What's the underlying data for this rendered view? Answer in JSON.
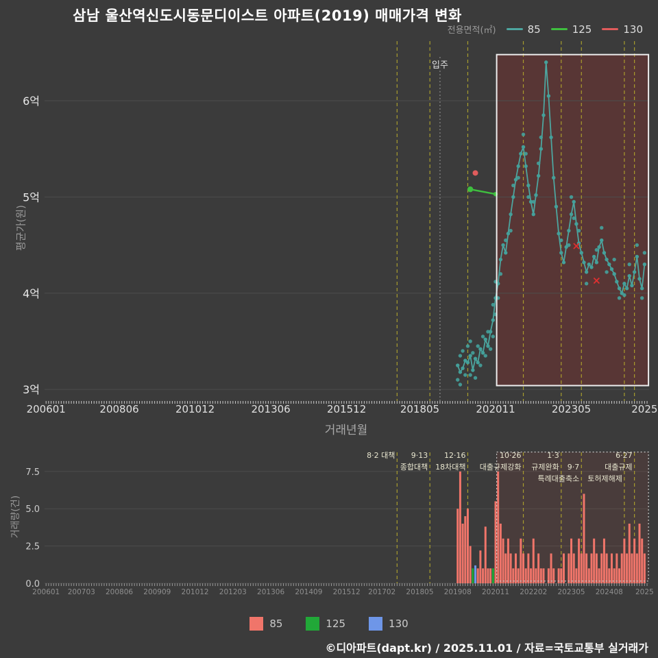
{
  "page": {
    "title": "삼남 울산역신도시동문디이스트 아파트(2019) 매매가격 변화",
    "footer": "©디아파트(dapt.kr) / 2025.11.01 / 자료=국토교통부 실거래가"
  },
  "legend_top": {
    "label": "전용면적(㎡)",
    "items": [
      {
        "name": "85",
        "color": "#4da6a0"
      },
      {
        "name": "125",
        "color": "#3fbf3f"
      },
      {
        "name": "130",
        "color": "#e05c5c"
      }
    ]
  },
  "legend_bottom": {
    "items": [
      {
        "name": "85",
        "color": "#f0756a"
      },
      {
        "name": "125",
        "color": "#21a838"
      },
      {
        "name": "130",
        "color": "#6e96e8"
      }
    ]
  },
  "colors": {
    "background": "#3b3b3b",
    "grid": "#4d4d4d",
    "policy_line": "#b3a82c",
    "axis_text": "#e0e0e0",
    "axis_text_dim": "#8f8f8f",
    "annotation_text": "#e8e6cf",
    "highlight_border": "#eeeeee",
    "highlight_fill": "rgba(150,45,40,0.32)",
    "volume_rect_border": "#c8c8c8",
    "volume_rect_fill": "rgba(200,70,60,0.10)",
    "move_in_line": "#999999",
    "cancel_mark": "#e03030",
    "tick_dot": "#cccccc"
  },
  "chart_data": [
    {
      "type": "scatter",
      "name": "price-by-month",
      "xlabel": "거래년월",
      "ylabel": "평균가(원)",
      "xlim": [
        2005.95,
        2025.9
      ],
      "ylim": [
        2.88,
        6.62
      ],
      "yticks": [
        {
          "v": 3,
          "label": "3억"
        },
        {
          "v": 4,
          "label": "4억"
        },
        {
          "v": 5,
          "label": "5억"
        },
        {
          "v": 6,
          "label": "6억"
        }
      ],
      "xticks": [
        {
          "ym": "200601",
          "label": "200601"
        },
        {
          "ym": "200806",
          "label": "200806"
        },
        {
          "ym": "201012",
          "label": "201012"
        },
        {
          "ym": "201306",
          "label": "201306"
        },
        {
          "ym": "201512",
          "label": "201512"
        },
        {
          "ym": "201805",
          "label": "201805"
        },
        {
          "ym": "202011",
          "label": "202011"
        },
        {
          "ym": "202305",
          "label": "202305"
        },
        {
          "ym": "202510",
          "label": "2025"
        }
      ],
      "policy_lines": [
        "201708",
        "201809",
        "201912",
        "202110",
        "202301",
        "202309",
        "202502",
        "202506"
      ],
      "move_in": {
        "ym": "201901",
        "label": "입주"
      },
      "highlight_rect": {
        "x0": 2020.87,
        "x1": 2025.88,
        "y0": 3.04,
        "y1": 6.48
      },
      "series": [
        {
          "name": "85",
          "color": "#4da6a0",
          "point_color": "#44a09a",
          "points": [
            [
              "201908",
              3.25
            ],
            [
              "201909",
              3.18
            ],
            [
              "201910",
              3.22
            ],
            [
              "201911",
              3.3
            ],
            [
              "201912",
              3.28
            ],
            [
              "202001",
              3.35
            ],
            [
              "202002",
              3.2
            ],
            [
              "202003",
              3.32
            ],
            [
              "202004",
              3.28
            ],
            [
              "202005",
              3.42
            ],
            [
              "202006",
              3.38
            ],
            [
              "202007",
              3.52
            ],
            [
              "202008",
              3.45
            ],
            [
              "202009",
              3.6
            ],
            [
              "202010",
              3.72
            ],
            [
              "202011",
              3.95
            ],
            [
              "202012",
              4.1
            ],
            [
              "202101",
              4.35
            ],
            [
              "202102",
              4.5
            ],
            [
              "202103",
              4.42
            ],
            [
              "202104",
              4.62
            ],
            [
              "202105",
              4.82
            ],
            [
              "202106",
              5.0
            ],
            [
              "202107",
              5.18
            ],
            [
              "202108",
              5.32
            ],
            [
              "202109",
              5.45
            ],
            [
              "202110",
              5.52
            ],
            [
              "202111",
              5.32
            ],
            [
              "202112",
              5.12
            ],
            [
              "202201",
              4.95
            ],
            [
              "202202",
              4.82
            ],
            [
              "202203",
              5.02
            ],
            [
              "202204",
              5.22
            ],
            [
              "202205",
              5.5
            ],
            [
              "202206",
              5.85
            ],
            [
              "202207",
              6.4
            ],
            [
              "202208",
              6.05
            ],
            [
              "202209",
              5.62
            ],
            [
              "202210",
              5.2
            ],
            [
              "202211",
              4.9
            ],
            [
              "202212",
              4.62
            ],
            [
              "202301",
              4.42
            ],
            [
              "202302",
              4.32
            ],
            [
              "202303",
              4.48
            ],
            [
              "202304",
              4.65
            ],
            [
              "202305",
              4.82
            ],
            [
              "202306",
              4.95
            ],
            [
              "202307",
              4.72
            ],
            [
              "202308",
              4.52
            ],
            [
              "202309",
              4.42
            ],
            [
              "202310",
              4.32
            ],
            [
              "202311",
              4.22
            ],
            [
              "202312",
              4.3
            ],
            [
              "202401",
              4.27
            ],
            [
              "202402",
              4.38
            ],
            [
              "202403",
              4.32
            ],
            [
              "202404",
              4.48
            ],
            [
              "202405",
              4.55
            ],
            [
              "202406",
              4.42
            ],
            [
              "202407",
              4.35
            ],
            [
              "202408",
              4.3
            ],
            [
              "202409",
              4.25
            ],
            [
              "202410",
              4.2
            ],
            [
              "202411",
              4.12
            ],
            [
              "202412",
              4.05
            ],
            [
              "202501",
              4.0
            ],
            [
              "202502",
              4.1
            ],
            [
              "202503",
              4.05
            ],
            [
              "202504",
              4.18
            ],
            [
              "202505",
              4.08
            ],
            [
              "202506",
              4.22
            ],
            [
              "202507",
              4.38
            ],
            [
              "202508",
              4.15
            ],
            [
              "202509",
              4.05
            ],
            [
              "202510",
              4.3
            ]
          ]
        },
        {
          "name": "125",
          "color": "#3fbf3f",
          "point_color": "#3fbf3f",
          "points": [
            [
              "202001",
              5.08
            ],
            [
              "202011",
              5.03
            ]
          ]
        },
        {
          "name": "130",
          "color": "#e05c5c",
          "point_color": "#e05c5c",
          "points": [
            [
              "202003",
              5.25
            ]
          ]
        }
      ],
      "scatter_extra_85": [
        [
          "201908",
          3.1
        ],
        [
          "201909",
          3.35
        ],
        [
          "201909",
          3.05
        ],
        [
          "201910",
          3.4
        ],
        [
          "201911",
          3.15
        ],
        [
          "201912",
          3.45
        ],
        [
          "202001",
          3.15
        ],
        [
          "202001",
          3.5
        ],
        [
          "202002",
          3.38
        ],
        [
          "202003",
          3.12
        ],
        [
          "202004",
          3.45
        ],
        [
          "202005",
          3.25
        ],
        [
          "202006",
          3.55
        ],
        [
          "202007",
          3.35
        ],
        [
          "202008",
          3.6
        ],
        [
          "202009",
          3.42
        ],
        [
          "202010",
          3.55
        ],
        [
          "202010",
          3.88
        ],
        [
          "202011",
          3.78
        ],
        [
          "202011",
          4.12
        ],
        [
          "202012",
          3.95
        ],
        [
          "202101",
          4.2
        ],
        [
          "202103",
          4.55
        ],
        [
          "202105",
          4.65
        ],
        [
          "202106",
          5.12
        ],
        [
          "202108",
          5.2
        ],
        [
          "202110",
          5.65
        ],
        [
          "202111",
          5.45
        ],
        [
          "202112",
          5.0
        ],
        [
          "202202",
          4.95
        ],
        [
          "202204",
          5.35
        ],
        [
          "202205",
          5.62
        ],
        [
          "202301",
          4.55
        ],
        [
          "202304",
          4.5
        ],
        [
          "202305",
          5.0
        ],
        [
          "202306",
          4.78
        ],
        [
          "202308",
          4.65
        ],
        [
          "202311",
          4.1
        ],
        [
          "202403",
          4.45
        ],
        [
          "202405",
          4.68
        ],
        [
          "202407",
          4.22
        ],
        [
          "202410",
          4.35
        ],
        [
          "202412",
          3.95
        ],
        [
          "202502",
          3.98
        ],
        [
          "202504",
          4.3
        ],
        [
          "202507",
          4.5
        ],
        [
          "202509",
          3.95
        ],
        [
          "202510",
          4.42
        ]
      ],
      "cancelled": [
        [
          "202307",
          4.49
        ],
        [
          "202403",
          4.13
        ]
      ]
    },
    {
      "type": "bar",
      "name": "volume-by-month",
      "ylabel": "거래량(건)",
      "xlim": [
        2005.95,
        2025.9
      ],
      "ylim": [
        0,
        9.1
      ],
      "yticks": [
        {
          "v": 0,
          "label": "0.0"
        },
        {
          "v": 2.5,
          "label": "2.5"
        },
        {
          "v": 5,
          "label": "5.0"
        },
        {
          "v": 7.5,
          "label": "7.5"
        }
      ],
      "xticks": [
        {
          "ym": "200601",
          "label": "200601"
        },
        {
          "ym": "200703",
          "label": "200703"
        },
        {
          "ym": "200806",
          "label": "200806"
        },
        {
          "ym": "200909",
          "label": "200909"
        },
        {
          "ym": "201012",
          "label": "201012"
        },
        {
          "ym": "201203",
          "label": "201203"
        },
        {
          "ym": "201306",
          "label": "201306"
        },
        {
          "ym": "201409",
          "label": "201409"
        },
        {
          "ym": "201512",
          "label": "201512"
        },
        {
          "ym": "201702",
          "label": "201702"
        },
        {
          "ym": "201805",
          "label": "201805"
        },
        {
          "ym": "201908",
          "label": "201908"
        },
        {
          "ym": "202011",
          "label": "202011"
        },
        {
          "ym": "202202",
          "label": "202202"
        },
        {
          "ym": "202305",
          "label": "202305"
        },
        {
          "ym": "202408",
          "label": "202408"
        },
        {
          "ym": "202510",
          "label": "2025"
        }
      ],
      "policy_lines": [
        "201708",
        "201809",
        "201912",
        "202110",
        "202301",
        "202309",
        "202502",
        "202506"
      ],
      "annotations": [
        {
          "ym": "201708",
          "row": 0,
          "text": "8·2 대책"
        },
        {
          "ym": "201809",
          "row": 0,
          "text": "9·13"
        },
        {
          "ym": "201809",
          "row": 1,
          "text": "종합대책"
        },
        {
          "ym": "201912",
          "row": 0,
          "text": "12·16"
        },
        {
          "ym": "201912",
          "row": 1,
          "text": "18차대책"
        },
        {
          "ym": "202110",
          "row": 0,
          "text": "10·26"
        },
        {
          "ym": "202110",
          "row": 1,
          "text": "대출규제강화"
        },
        {
          "ym": "202301",
          "row": 0,
          "text": "1·3"
        },
        {
          "ym": "202301",
          "row": 1,
          "text": "규제완화"
        },
        {
          "ym": "202309",
          "row": 1,
          "text": "9·7"
        },
        {
          "ym": "202309",
          "row": 2,
          "text": "특례대출축소"
        },
        {
          "ym": "202502",
          "row": 2,
          "text": "토허제해제"
        },
        {
          "ym": "202506",
          "row": 0,
          "text": "6·27"
        },
        {
          "ym": "202506",
          "row": 1,
          "text": "대출규제"
        }
      ],
      "dashed_rect": {
        "x0": 2020.87,
        "x1": 2025.88,
        "y0": 0.15,
        "y1": 8.8
      },
      "bar_colors": {
        "85": "#f0756a",
        "125": "#21a838",
        "130": "#6e96e8"
      },
      "bars": [
        [
          "201908",
          5
        ],
        [
          "201909",
          7.5
        ],
        [
          "201910",
          4
        ],
        [
          "201911",
          4.5
        ],
        [
          "201912",
          5
        ],
        [
          "202001",
          2.5
        ],
        [
          "202002",
          1,
          "125"
        ],
        [
          "202003",
          1.2,
          "130"
        ],
        [
          "202004",
          1
        ],
        [
          "202005",
          2.2
        ],
        [
          "202006",
          1
        ],
        [
          "202007",
          3.8
        ],
        [
          "202008",
          1
        ],
        [
          "202009",
          1
        ],
        [
          "202010",
          1,
          "125"
        ],
        [
          "202011",
          5.5
        ],
        [
          "202012",
          7.5
        ],
        [
          "202101",
          4
        ],
        [
          "202102",
          3
        ],
        [
          "202103",
          2
        ],
        [
          "202104",
          3
        ],
        [
          "202105",
          2
        ],
        [
          "202106",
          1
        ],
        [
          "202107",
          2
        ],
        [
          "202108",
          1
        ],
        [
          "202109",
          3
        ],
        [
          "202110",
          2
        ],
        [
          "202111",
          1
        ],
        [
          "202112",
          2
        ],
        [
          "202201",
          1
        ],
        [
          "202202",
          3
        ],
        [
          "202203",
          1
        ],
        [
          "202204",
          2
        ],
        [
          "202205",
          1
        ],
        [
          "202206",
          1
        ],
        [
          "202208",
          1
        ],
        [
          "202209",
          2
        ],
        [
          "202210",
          1
        ],
        [
          "202212",
          1
        ],
        [
          "202301",
          1
        ],
        [
          "202302",
          2
        ],
        [
          "202304",
          2
        ],
        [
          "202305",
          3
        ],
        [
          "202306",
          2
        ],
        [
          "202307",
          1
        ],
        [
          "202308",
          3
        ],
        [
          "202309",
          2
        ],
        [
          "202310",
          6
        ],
        [
          "202311",
          2
        ],
        [
          "202312",
          1
        ],
        [
          "202401",
          2
        ],
        [
          "202402",
          3
        ],
        [
          "202403",
          2
        ],
        [
          "202404",
          1
        ],
        [
          "202405",
          2
        ],
        [
          "202406",
          3
        ],
        [
          "202407",
          2
        ],
        [
          "202408",
          1
        ],
        [
          "202409",
          2
        ],
        [
          "202410",
          1
        ],
        [
          "202411",
          2
        ],
        [
          "202412",
          1
        ],
        [
          "202501",
          2
        ],
        [
          "202502",
          3
        ],
        [
          "202503",
          2
        ],
        [
          "202504",
          4
        ],
        [
          "202505",
          2
        ],
        [
          "202506",
          3
        ],
        [
          "202507",
          2
        ],
        [
          "202508",
          4
        ],
        [
          "202509",
          3
        ],
        [
          "202510",
          2
        ]
      ]
    }
  ]
}
